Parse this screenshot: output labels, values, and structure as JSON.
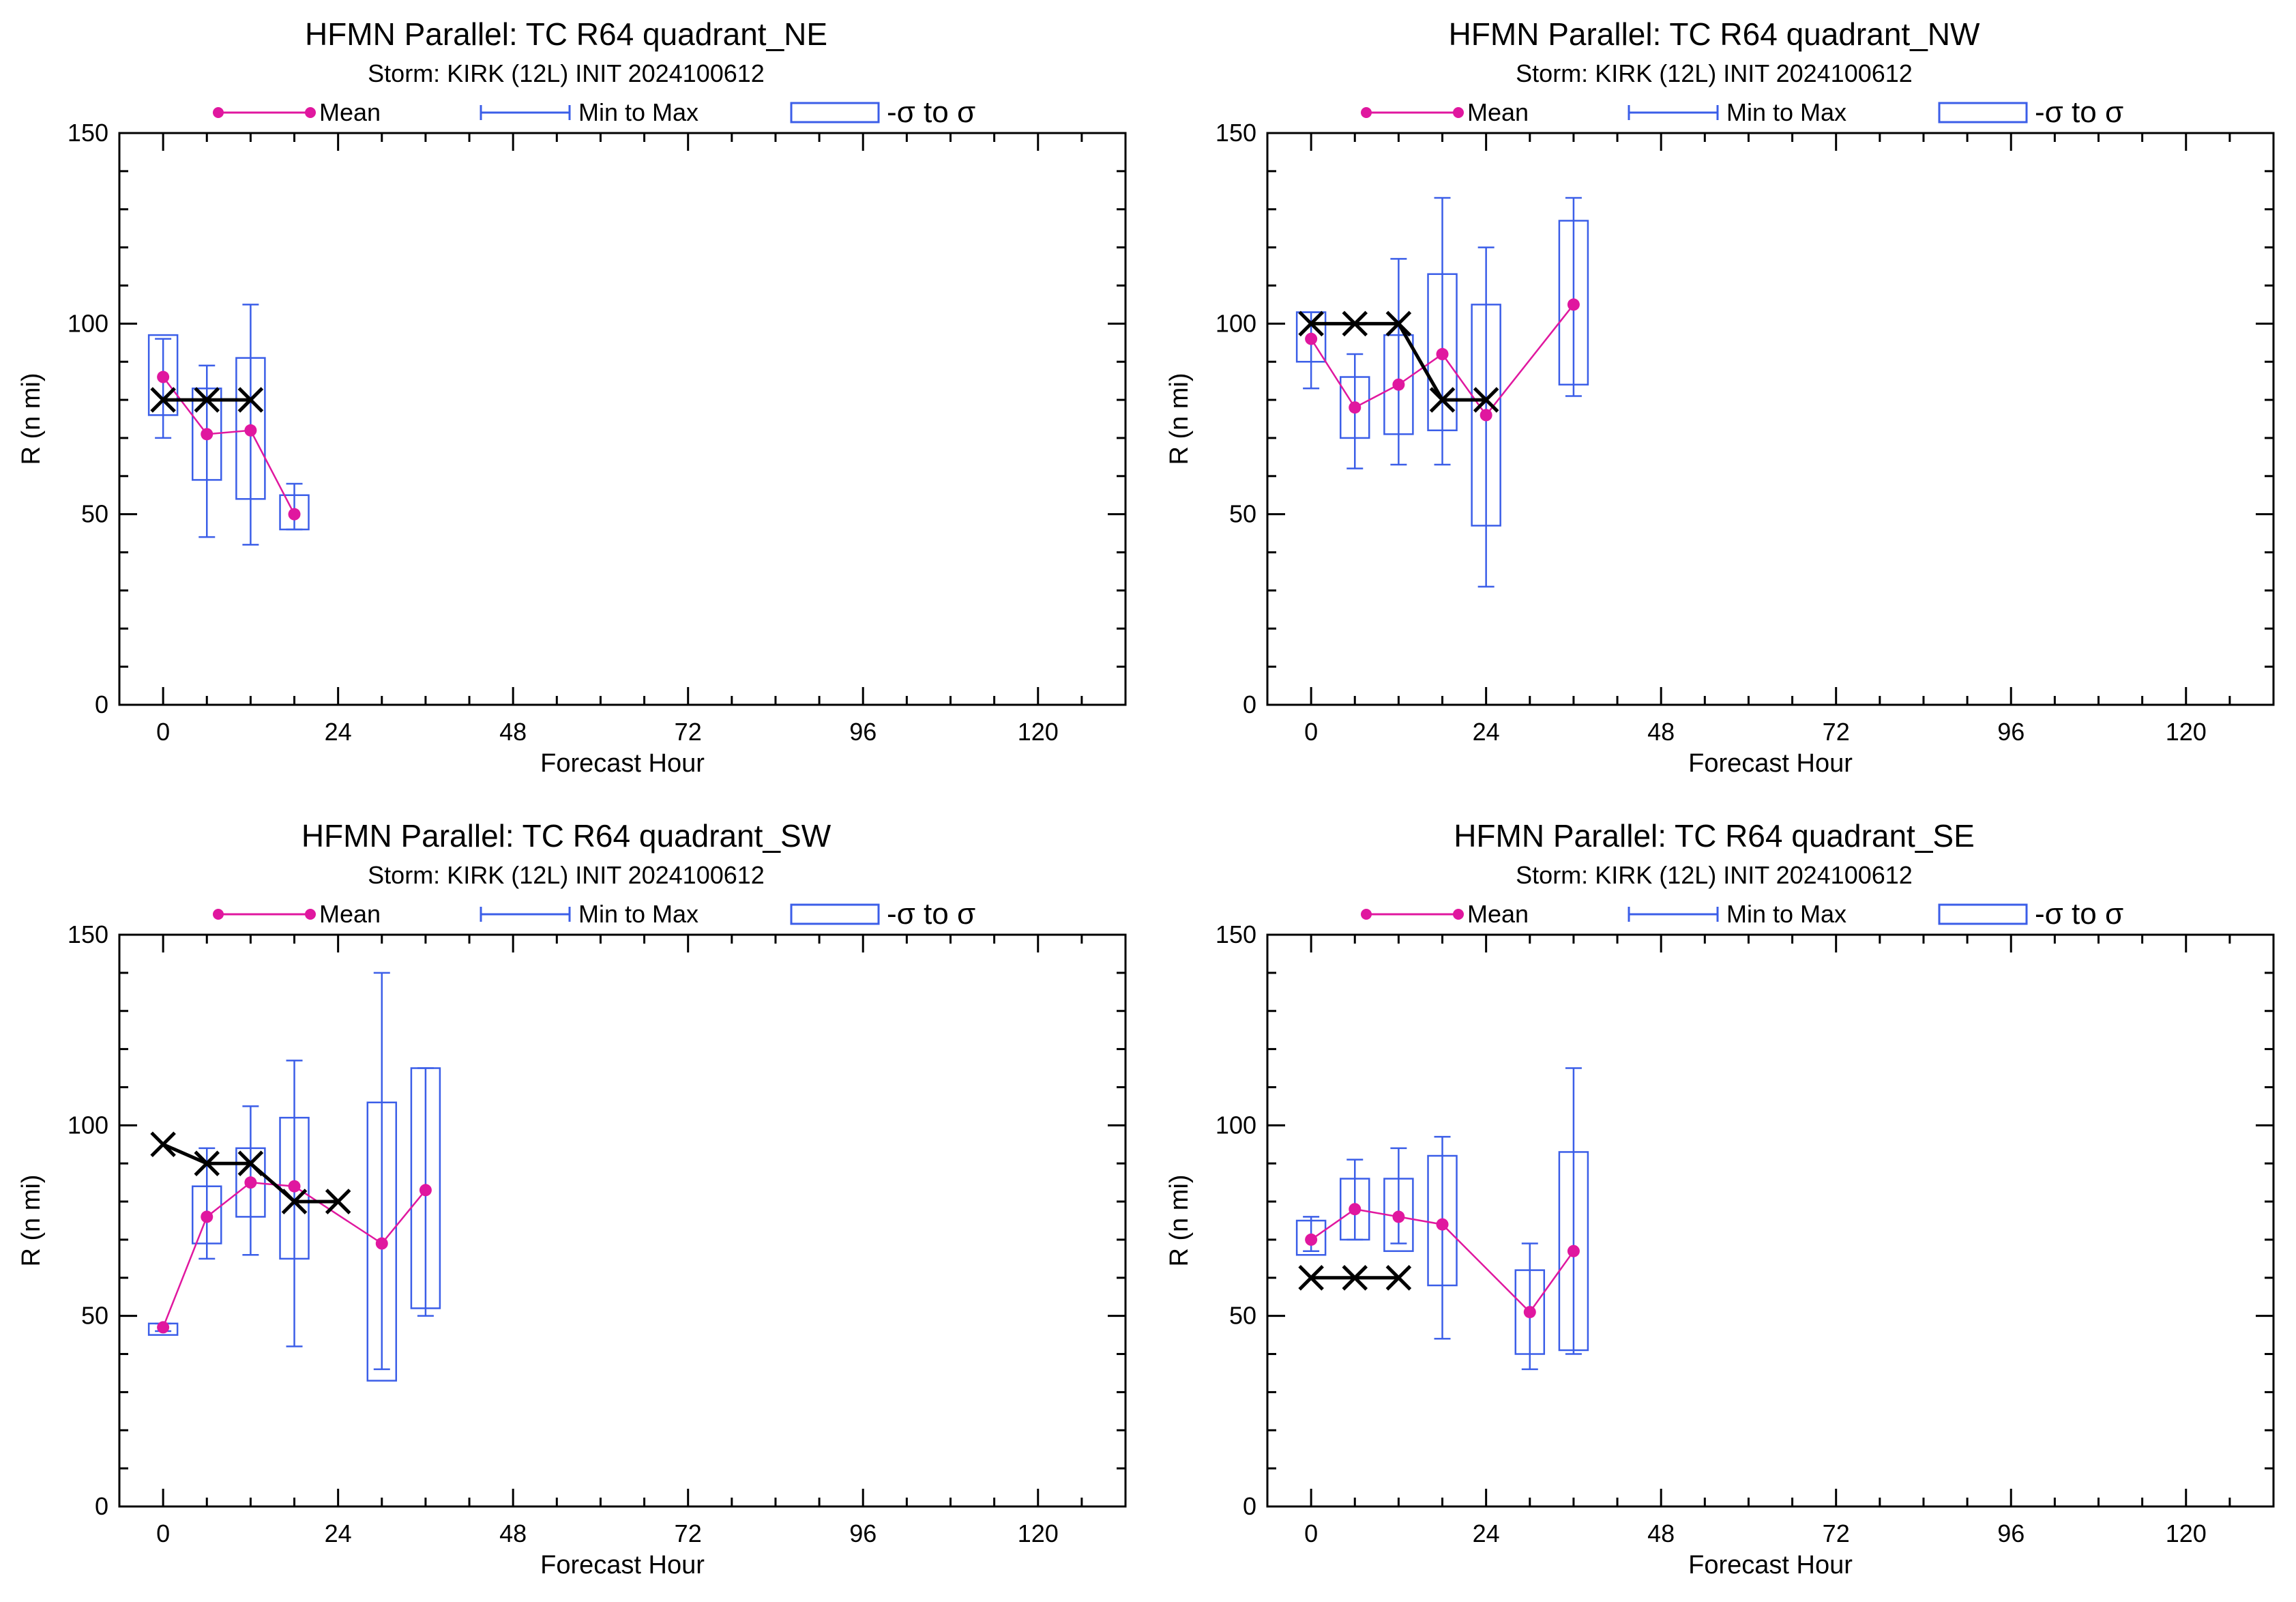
{
  "colors": {
    "mean": "#e0179f",
    "range": "#3b5ee8",
    "obs": "#000000",
    "axis": "#000000"
  },
  "legend": {
    "mean": "Mean",
    "range": "Min to Max",
    "sigma": "-σ to σ"
  },
  "chart_data": [
    {
      "type": "box",
      "title": "HFMN Parallel: TC  R64 quadrant_NE",
      "subtitle": "Storm: KIRK (12L) INIT 2024100612",
      "xlabel": "Forecast Hour",
      "ylabel": "R (n mi)",
      "xlim": [
        -6,
        132
      ],
      "ylim": [
        0,
        150
      ],
      "xticks": [
        0,
        24,
        48,
        72,
        96,
        120
      ],
      "yticks": [
        0,
        50,
        100,
        150
      ],
      "grid": false,
      "legend_position": "top",
      "series": [
        {
          "name": "Mean",
          "x": [
            0,
            6,
            12,
            18
          ],
          "y": [
            86,
            71,
            72,
            50
          ]
        },
        {
          "name": "Min to Max",
          "x": [
            0,
            6,
            12,
            18
          ],
          "low": [
            70,
            44,
            42,
            46
          ],
          "high": [
            96,
            89,
            105,
            58
          ]
        },
        {
          "name": "-σ to σ",
          "x": [
            0,
            6,
            12,
            18
          ],
          "low": [
            76,
            59,
            54,
            46
          ],
          "high": [
            97,
            83,
            91,
            55
          ]
        },
        {
          "x": [
            0,
            6,
            12
          ],
          "y": [
            80,
            80,
            80
          ]
        }
      ]
    },
    {
      "type": "box",
      "title": "HFMN Parallel: TC  R64 quadrant_NW",
      "subtitle": "Storm: KIRK (12L) INIT 2024100612",
      "xlabel": "Forecast Hour",
      "ylabel": "R (n mi)",
      "xlim": [
        -6,
        132
      ],
      "ylim": [
        0,
        150
      ],
      "xticks": [
        0,
        24,
        48,
        72,
        96,
        120
      ],
      "yticks": [
        0,
        50,
        100,
        150
      ],
      "grid": false,
      "legend_position": "top",
      "series": [
        {
          "name": "Mean",
          "x": [
            0,
            6,
            12,
            18,
            24,
            36
          ],
          "y": [
            96,
            78,
            84,
            92,
            76,
            105
          ]
        },
        {
          "name": "Min to Max",
          "x": [
            0,
            6,
            12,
            18,
            24,
            36
          ],
          "low": [
            83,
            62,
            63,
            63,
            31,
            81
          ],
          "high": [
            103,
            92,
            117,
            133,
            120,
            133
          ]
        },
        {
          "name": "-σ to σ",
          "x": [
            0,
            6,
            12,
            18,
            24,
            36
          ],
          "low": [
            90,
            70,
            71,
            72,
            47,
            84
          ],
          "high": [
            103,
            86,
            97,
            113,
            105,
            127
          ]
        },
        {
          "x": [
            0,
            6,
            12,
            18,
            24
          ],
          "y": [
            100,
            100,
            100,
            80,
            80
          ]
        }
      ]
    },
    {
      "type": "box",
      "title": "HFMN Parallel: TC  R64 quadrant_SW",
      "subtitle": "Storm: KIRK (12L) INIT 2024100612",
      "xlabel": "Forecast Hour",
      "ylabel": "R (n mi)",
      "xlim": [
        -6,
        132
      ],
      "ylim": [
        0,
        150
      ],
      "xticks": [
        0,
        24,
        48,
        72,
        96,
        120
      ],
      "yticks": [
        0,
        50,
        100,
        150
      ],
      "grid": false,
      "legend_position": "top",
      "series": [
        {
          "name": "Mean",
          "x": [
            0,
            6,
            12,
            18,
            30,
            36
          ],
          "y": [
            47,
            76,
            85,
            84,
            69,
            83
          ]
        },
        {
          "name": "Min to Max",
          "x": [
            0,
            6,
            12,
            18,
            30,
            36
          ],
          "low": [
            46,
            65,
            66,
            42,
            36,
            50
          ],
          "high": [
            48,
            94,
            105,
            117,
            140,
            115
          ]
        },
        {
          "name": "-σ to σ",
          "x": [
            0,
            6,
            12,
            18,
            30,
            36
          ],
          "low": [
            45,
            69,
            76,
            65,
            33,
            52
          ],
          "high": [
            48,
            84,
            94,
            102,
            106,
            115
          ]
        },
        {
          "x": [
            0,
            6,
            12,
            18,
            24
          ],
          "y": [
            95,
            90,
            90,
            80,
            80
          ]
        }
      ]
    },
    {
      "type": "box",
      "title": "HFMN Parallel: TC  R64 quadrant_SE",
      "subtitle": "Storm: KIRK (12L) INIT 2024100612",
      "xlabel": "Forecast Hour",
      "ylabel": "R (n mi)",
      "xlim": [
        -6,
        132
      ],
      "ylim": [
        0,
        150
      ],
      "xticks": [
        0,
        24,
        48,
        72,
        96,
        120
      ],
      "yticks": [
        0,
        50,
        100,
        150
      ],
      "grid": false,
      "legend_position": "top",
      "series": [
        {
          "name": "Mean",
          "x": [
            0,
            6,
            12,
            18,
            30,
            36
          ],
          "y": [
            70,
            78,
            76,
            74,
            51,
            67
          ]
        },
        {
          "name": "Min to Max",
          "x": [
            0,
            6,
            12,
            18,
            30,
            36
          ],
          "low": [
            67,
            70,
            69,
            44,
            36,
            40
          ],
          "high": [
            76,
            91,
            94,
            97,
            69,
            115
          ]
        },
        {
          "name": "-σ to σ",
          "x": [
            0,
            6,
            12,
            18,
            30,
            36
          ],
          "low": [
            66,
            70,
            67,
            58,
            40,
            41
          ],
          "high": [
            75,
            86,
            86,
            92,
            62,
            93
          ]
        },
        {
          "x": [
            0,
            6,
            12
          ],
          "y": [
            60,
            60,
            60
          ]
        }
      ]
    }
  ]
}
